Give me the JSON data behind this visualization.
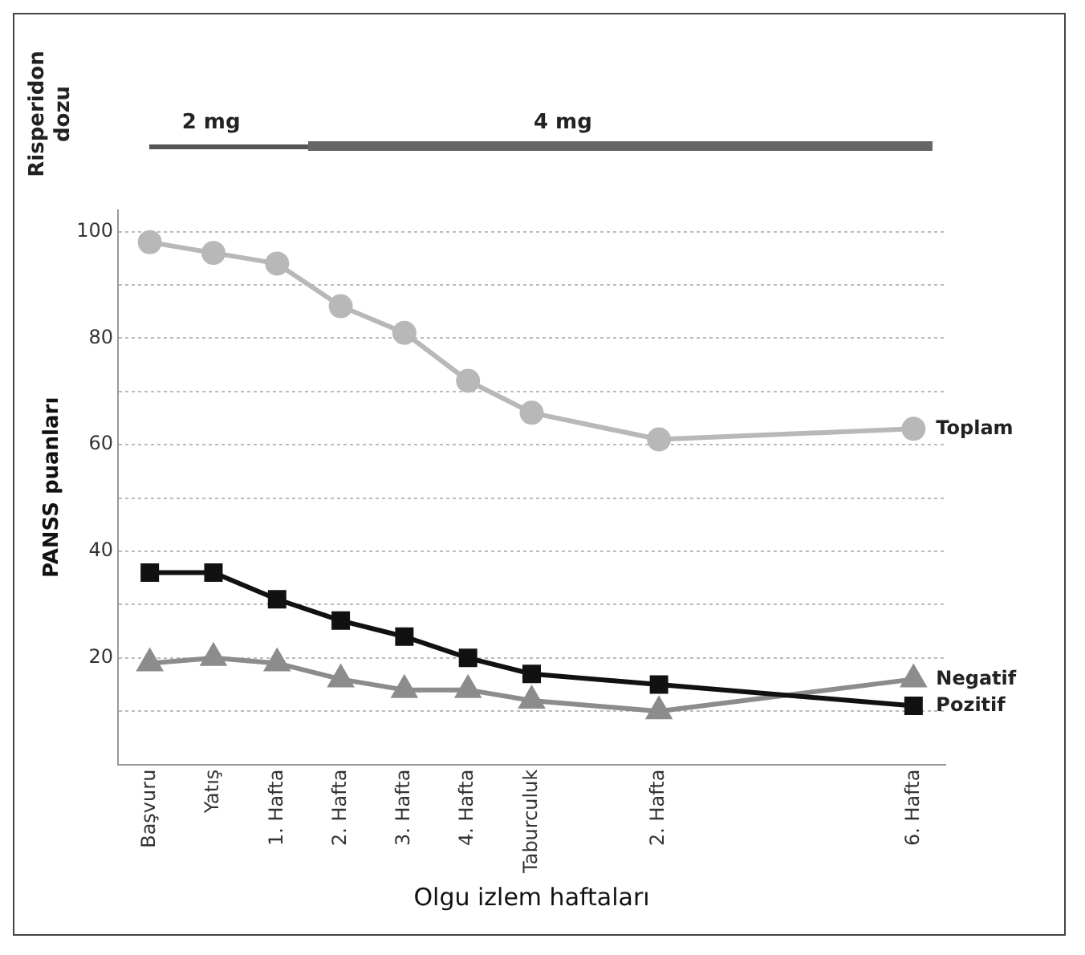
{
  "chart_data": {
    "type": "line",
    "xlabel": "Olgu izlem haftaları",
    "ylabel": "PANSS puanları",
    "categories": [
      "Başvuru",
      "Yatış",
      "1. Hafta",
      "2. Hafta",
      "3. Hafta",
      "4. Hafta",
      "Taburculuk",
      null,
      "2. Hafta",
      null,
      null,
      null,
      "6. Hafta"
    ],
    "ylim": [
      0,
      104
    ],
    "yticks": [
      {
        "value": 10,
        "label": null
      },
      20,
      {
        "value": 30,
        "label": null
      },
      40,
      {
        "value": 50,
        "label": null
      },
      60,
      {
        "value": 70,
        "label": null
      },
      80,
      {
        "value": 90,
        "label": null
      },
      100
    ],
    "grid": "y",
    "legend": false,
    "line_style": "solid",
    "series": [
      {
        "name": "Toplam",
        "color": "#b8b8b8",
        "marker": "circle",
        "values": [
          98,
          96,
          94,
          86,
          81,
          72,
          66,
          null,
          61,
          null,
          null,
          null,
          63
        ]
      },
      {
        "name": "Pozitif",
        "color": "#111111",
        "marker": "square",
        "values": [
          36,
          36,
          31,
          27,
          24,
          20,
          17,
          null,
          15,
          null,
          null,
          null,
          11
        ]
      },
      {
        "name": "Negatif",
        "color": "#8c8c8c",
        "marker": "triangle",
        "values": [
          19,
          20,
          19,
          16,
          14,
          14,
          12,
          null,
          10,
          null,
          null,
          null,
          16
        ]
      }
    ],
    "annotations": [
      "Risperidon dozu",
      "2 mg",
      "4 mg"
    ]
  }
}
